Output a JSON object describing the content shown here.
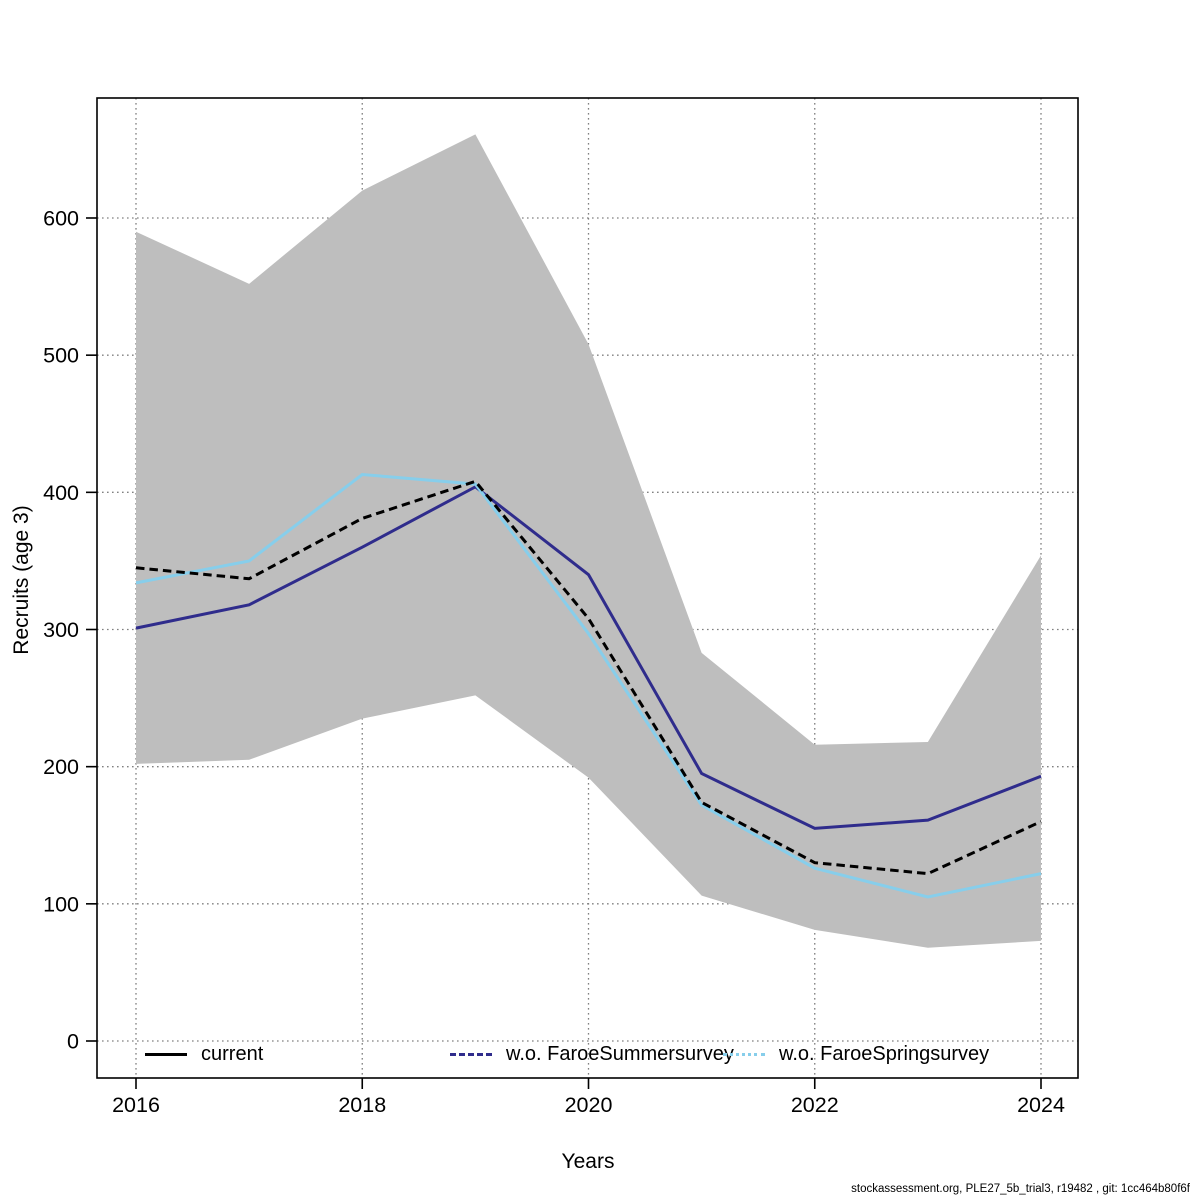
{
  "footer": "stockassessment.org, PLE27_5b_trial3, r19482 , git: 1cc464b80f6f",
  "chart_data": {
    "type": "line",
    "title": "",
    "xlabel": "Years",
    "ylabel": "Recruits (age 3)",
    "x": [
      2016,
      2017,
      2018,
      2019,
      2020,
      2021,
      2022,
      2023,
      2024
    ],
    "xticks": [
      2016,
      2018,
      2020,
      2022,
      2024
    ],
    "yticks": [
      0,
      100,
      200,
      300,
      400,
      500,
      600
    ],
    "xlim": [
      2015.65,
      2024.33
    ],
    "ylim": [
      0,
      687
    ],
    "grid": "dotted",
    "grid_color": "#808080",
    "series": [
      {
        "name": "current",
        "color": "#000000",
        "style": "dashed",
        "values": [
          345,
          337,
          381,
          408,
          308,
          174,
          130,
          122,
          160
        ]
      },
      {
        "name": "w.o. FaroeSummersurvey",
        "color": "#2f2c8c",
        "style": "solid",
        "values": [
          301,
          318,
          360,
          404,
          340,
          195,
          155,
          161,
          193
        ]
      },
      {
        "name": "w.o. FaroeSpringsurvey",
        "color": "#87CEEB",
        "style": "solid",
        "values": [
          334,
          350,
          413,
          406,
          297,
          172,
          126,
          105,
          122
        ]
      }
    ],
    "band": {
      "name": "confidence-band",
      "color": "#BEBEBE",
      "upper": [
        590,
        552,
        620,
        661,
        508,
        283,
        216,
        218,
        354
      ],
      "lower": [
        202,
        205,
        235,
        252,
        192,
        106,
        81,
        68,
        73
      ]
    },
    "legend": {
      "position": "bottom-inside",
      "entries": [
        {
          "label": "current",
          "color": "#000000",
          "line": "solid"
        },
        {
          "label": "w.o. FaroeSummersurvey",
          "color": "#2f2c8c",
          "line": "dashed"
        },
        {
          "label": "w.o. FaroeSpringsurvey",
          "color": "#87CEEB",
          "line": "dotted"
        }
      ]
    }
  }
}
